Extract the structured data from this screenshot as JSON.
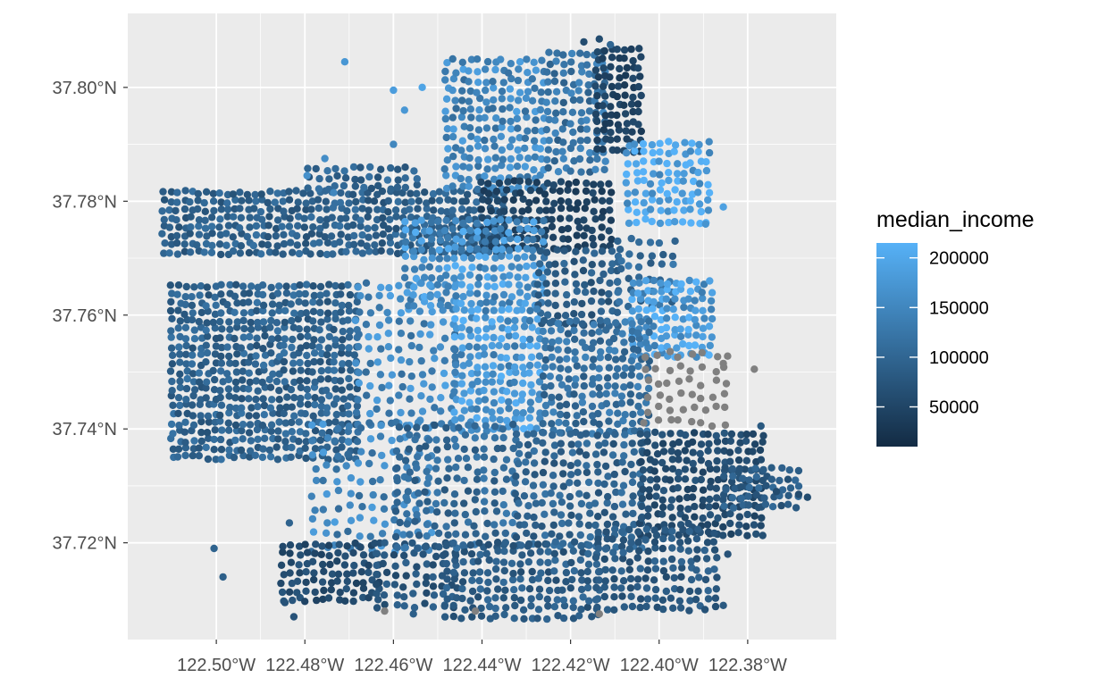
{
  "chart_data": {
    "type": "scatter",
    "title": "",
    "xlabel": "",
    "ylabel": "",
    "xlim": [
      -122.52,
      -122.36
    ],
    "ylim": [
      37.703,
      37.813
    ],
    "x_ticks": [
      {
        "value": -122.5,
        "label": "122.50°W"
      },
      {
        "value": -122.48,
        "label": "122.48°W"
      },
      {
        "value": -122.46,
        "label": "122.46°W"
      },
      {
        "value": -122.44,
        "label": "122.44°W"
      },
      {
        "value": -122.42,
        "label": "122.42°W"
      },
      {
        "value": -122.4,
        "label": "122.40°W"
      },
      {
        "value": -122.38,
        "label": "122.38°W"
      }
    ],
    "y_ticks": [
      {
        "value": 37.72,
        "label": "37.72°N"
      },
      {
        "value": 37.74,
        "label": "37.74°N"
      },
      {
        "value": 37.76,
        "label": "37.76°N"
      },
      {
        "value": 37.78,
        "label": "37.78°N"
      },
      {
        "value": 37.8,
        "label": "37.80°N"
      }
    ],
    "grid": true,
    "panel_background": "#ebebeb",
    "grid_color": "#ffffff",
    "na_color": "#808080",
    "color_scale": {
      "variable": "median_income",
      "low_color": "#132b43",
      "high_color": "#56b1f7",
      "min": 10000,
      "max": 215000,
      "breaks": [
        {
          "value": 200000,
          "label": "200000"
        },
        {
          "value": 150000,
          "label": "150000"
        },
        {
          "value": 100000,
          "label": "100000"
        },
        {
          "value": 50000,
          "label": "50000"
        }
      ]
    },
    "legend": {
      "title": "median_income",
      "position": "right"
    },
    "regions": [
      {
        "xr": [
          -122.512,
          -122.435
        ],
        "yr": [
          37.771,
          37.782
        ],
        "step": [
          0.0016,
          0.0015
        ],
        "income": 92000
      },
      {
        "xr": [
          -122.479,
          -122.455
        ],
        "yr": [
          37.7825,
          37.786
        ],
        "step": [
          0.002,
          0.0016
        ],
        "income": 98000
      },
      {
        "xr": [
          -122.51,
          -122.468
        ],
        "yr": [
          37.735,
          37.766
        ],
        "step": [
          0.0016,
          0.0015
        ],
        "income": 95000
      },
      {
        "xr": [
          -122.468,
          -122.445
        ],
        "yr": [
          37.741,
          37.766
        ],
        "step": [
          0.0024,
          0.0022
        ],
        "income": 150000
      },
      {
        "xr": [
          -122.478,
          -122.452
        ],
        "yr": [
          37.719,
          37.741
        ],
        "step": [
          0.0026,
          0.0024
        ],
        "income": 145000
      },
      {
        "xr": [
          -122.485,
          -122.462
        ],
        "yr": [
          37.71,
          37.721
        ],
        "step": [
          0.0018,
          0.0016
        ],
        "income": 60000
      },
      {
        "xr": [
          -122.464,
          -122.446
        ],
        "yr": [
          37.709,
          37.72
        ],
        "step": [
          0.0022,
          0.0018
        ],
        "income": 75000
      },
      {
        "xr": [
          -122.448,
          -122.425
        ],
        "yr": [
          37.7825,
          37.805
        ],
        "step": [
          0.0018,
          0.0017
        ],
        "income": 150000
      },
      {
        "xr": [
          -122.425,
          -122.411
        ],
        "yr": [
          37.7855,
          37.806
        ],
        "step": [
          0.0018,
          0.0017
        ],
        "income": 120000
      },
      {
        "xr": [
          -122.414,
          -122.404
        ],
        "yr": [
          37.789,
          37.808
        ],
        "step": [
          0.0016,
          0.0016
        ],
        "income": 45000
      },
      {
        "xr": [
          -122.44,
          -122.41
        ],
        "yr": [
          37.772,
          37.7845
        ],
        "step": [
          0.0018,
          0.0016
        ],
        "income": 45000
      },
      {
        "xr": [
          -122.407,
          -122.389
        ],
        "yr": [
          37.7765,
          37.791
        ],
        "step": [
          0.0018,
          0.0017
        ],
        "income": 200000
      },
      {
        "xr": [
          -122.457,
          -122.426
        ],
        "yr": [
          37.762,
          37.777
        ],
        "step": [
          0.0018,
          0.0016
        ],
        "income": 165000
      },
      {
        "xr": [
          -122.427,
          -122.409
        ],
        "yr": [
          37.7585,
          37.772
        ],
        "step": [
          0.002,
          0.0018
        ],
        "income": 85000
      },
      {
        "xr": [
          -122.409,
          -122.395
        ],
        "yr": [
          37.762,
          37.775
        ],
        "step": [
          0.0024,
          0.0022
        ],
        "income": 110000
      },
      {
        "xr": [
          -122.406,
          -122.388
        ],
        "yr": [
          37.753,
          37.766
        ],
        "step": [
          0.0016,
          0.0016
        ],
        "income": 185000
      },
      {
        "xr": [
          -122.446,
          -122.426
        ],
        "yr": [
          37.74,
          37.762
        ],
        "step": [
          0.0017,
          0.0016
        ],
        "income": 170000
      },
      {
        "xr": [
          -122.426,
          -122.402
        ],
        "yr": [
          37.7395,
          37.759
        ],
        "step": [
          0.0018,
          0.0016
        ],
        "income": 115000
      },
      {
        "xr": [
          -122.403,
          -122.383
        ],
        "yr": [
          37.741,
          37.7545
        ],
        "step": [
          0.0026,
          0.0024
        ],
        "income": null
      },
      {
        "xr": [
          -122.459,
          -122.432
        ],
        "yr": [
          37.7195,
          37.741
        ],
        "step": [
          0.0022,
          0.0019
        ],
        "income": 105000
      },
      {
        "xr": [
          -122.432,
          -122.404
        ],
        "yr": [
          37.7195,
          37.74
        ],
        "step": [
          0.002,
          0.0018
        ],
        "income": 95000
      },
      {
        "xr": [
          -122.404,
          -122.376
        ],
        "yr": [
          37.7215,
          37.74
        ],
        "step": [
          0.0017,
          0.0016
        ],
        "income": 60000
      },
      {
        "xr": [
          -122.448,
          -122.413
        ],
        "yr": [
          37.707,
          37.7205
        ],
        "step": [
          0.0019,
          0.0016
        ],
        "income": 85000
      },
      {
        "xr": [
          -122.414,
          -122.386
        ],
        "yr": [
          37.7085,
          37.7225
        ],
        "step": [
          0.0019,
          0.0017
        ],
        "income": 80000
      },
      {
        "xr": [
          -122.385,
          -122.368
        ],
        "yr": [
          37.7265,
          37.7335
        ],
        "step": [
          0.0018,
          0.0016
        ],
        "income": 85000
      }
    ],
    "outliers": [
      {
        "lon": -122.471,
        "lat": 37.8045,
        "income": 175000
      },
      {
        "lon": -122.46,
        "lat": 37.7995,
        "income": 185000
      },
      {
        "lon": -122.4535,
        "lat": 37.8,
        "income": 195000
      },
      {
        "lon": -122.4575,
        "lat": 37.796,
        "income": 175000
      },
      {
        "lon": -122.4755,
        "lat": 37.7875,
        "income": 160000
      },
      {
        "lon": -122.4795,
        "lat": 37.7845,
        "income": 165000
      },
      {
        "lon": -122.46,
        "lat": 37.79,
        "income": 150000
      },
      {
        "lon": -122.4735,
        "lat": 37.7815,
        "income": 150000
      },
      {
        "lon": -122.5005,
        "lat": 37.719,
        "income": 95000
      },
      {
        "lon": -122.4985,
        "lat": 37.714,
        "income": 90000
      },
      {
        "lon": -122.4845,
        "lat": 37.7095,
        "income": 70000
      },
      {
        "lon": -122.4825,
        "lat": 37.707,
        "income": 70000
      },
      {
        "lon": -122.4835,
        "lat": 37.7235,
        "income": 95000
      },
      {
        "lon": -122.4705,
        "lat": 37.7145,
        "income": 60000
      },
      {
        "lon": -122.462,
        "lat": 37.708,
        "income": null
      },
      {
        "lon": -122.4415,
        "lat": 37.708,
        "income": null
      },
      {
        "lon": -122.4135,
        "lat": 37.7075,
        "income": null
      },
      {
        "lon": -122.4555,
        "lat": 37.7075,
        "income": 90000
      },
      {
        "lon": -122.377,
        "lat": 37.7405,
        "income": 80000
      },
      {
        "lon": -122.3785,
        "lat": 37.7505,
        "income": null
      },
      {
        "lon": -122.3855,
        "lat": 37.7515,
        "income": null
      },
      {
        "lon": -122.3665,
        "lat": 37.728,
        "income": 60000
      },
      {
        "lon": -122.3685,
        "lat": 37.7285,
        "income": 60000
      },
      {
        "lon": -122.3735,
        "lat": 37.729,
        "income": 60000
      },
      {
        "lon": -122.3845,
        "lat": 37.718,
        "income": 70000
      },
      {
        "lon": -122.3855,
        "lat": 37.709,
        "income": 80000
      },
      {
        "lon": -122.4085,
        "lat": 37.7695,
        "income": 120000
      },
      {
        "lon": -122.3895,
        "lat": 37.776,
        "income": 170000
      },
      {
        "lon": -122.3855,
        "lat": 37.779,
        "income": 190000
      },
      {
        "lon": -122.411,
        "lat": 37.8075,
        "income": 100000
      },
      {
        "lon": -122.417,
        "lat": 37.808,
        "income": 60000
      },
      {
        "lon": -122.4135,
        "lat": 37.8085,
        "income": 60000
      }
    ]
  }
}
